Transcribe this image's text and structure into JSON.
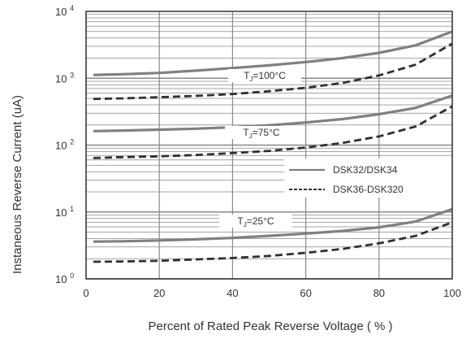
{
  "chart_data": {
    "type": "line",
    "xlabel": "Percent of Rated Peak Reverse Voltage ( % )",
    "ylabel": "Instaneous Reverse Current (uA)",
    "xlim": [
      0,
      100
    ],
    "ylim": [
      1,
      10000
    ],
    "yscale": "log",
    "grid": true,
    "x_ticks": [
      "0",
      "20",
      "40",
      "60",
      "80",
      "100"
    ],
    "y_ticks": [
      {
        "base": "10",
        "exp": "0"
      },
      {
        "base": "10",
        "exp": "1"
      },
      {
        "base": "10",
        "exp": "2"
      },
      {
        "base": "10",
        "exp": "3"
      },
      {
        "base": "10",
        "exp": "4"
      }
    ],
    "legend": {
      "placement": "right-center",
      "entries": [
        "DSK32/DSK34",
        "DSK36-DSK320"
      ]
    },
    "annotations": [
      {
        "t": "T",
        "sub": "J",
        "rest": "=100°C"
      },
      {
        "t": "T",
        "sub": "J",
        "rest": "=75°C"
      },
      {
        "t": "T",
        "sub": "J",
        "rest": "=25°C"
      }
    ],
    "x": [
      2,
      10,
      20,
      30,
      40,
      50,
      60,
      70,
      80,
      90,
      100
    ],
    "series": [
      {
        "name": "DSK32/DSK34",
        "group": "100°C",
        "style": "solid",
        "values": [
          1120,
          1150,
          1200,
          1300,
          1420,
          1560,
          1750,
          2000,
          2400,
          3100,
          5000
        ]
      },
      {
        "name": "DSK36-DSK320",
        "group": "100°C",
        "style": "dashed",
        "values": [
          490,
          500,
          520,
          545,
          580,
          640,
          720,
          850,
          1100,
          1600,
          3300
        ]
      },
      {
        "name": "DSK32/DSK34",
        "group": "75°C",
        "style": "solid",
        "values": [
          162,
          165,
          170,
          176,
          185,
          198,
          218,
          245,
          290,
          360,
          550
        ]
      },
      {
        "name": "DSK36-DSK320",
        "group": "75°C",
        "style": "dashed",
        "values": [
          64,
          66,
          68,
          71,
          76,
          82,
          92,
          108,
          135,
          190,
          380
        ]
      },
      {
        "name": "DSK32/DSK34",
        "group": "25°C",
        "style": "solid",
        "values": [
          3.6,
          3.65,
          3.75,
          3.9,
          4.1,
          4.4,
          4.75,
          5.2,
          5.9,
          7.2,
          11
        ]
      },
      {
        "name": "DSK36-DSK320",
        "group": "25°C",
        "style": "dashed",
        "values": [
          1.8,
          1.82,
          1.86,
          1.95,
          2.05,
          2.2,
          2.45,
          2.8,
          3.4,
          4.4,
          7
        ]
      }
    ],
    "colors": {
      "solid": "#808080",
      "dashed": "#303030",
      "grid": "#888888",
      "axis": "#333333"
    }
  }
}
